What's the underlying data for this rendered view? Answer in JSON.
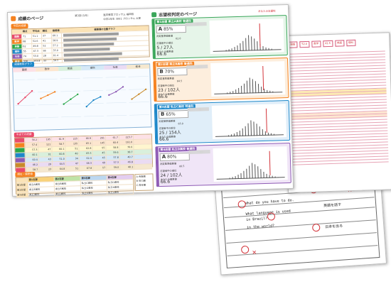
{
  "report": {
    "left_title": "成績のページ",
    "round": "第3回 (1月)",
    "school_label": "進学教室プロッサム 福岡校",
    "student_line": "中学2年生 3001 プロッサム 太郎",
    "sections": {
      "current_scores": "今回の成績",
      "trend": "成績推移グラフ",
      "past_scores": "今までの成績",
      "ranking": "順位・偏差値"
    },
    "score_headers": [
      "得点",
      "平均点",
      "順位",
      "偏差値"
    ],
    "distribution_header": "偏差値の位置グラフ",
    "subjects": [
      {
        "name": "国語",
        "color": "#e94b6b",
        "score": "71",
        "avg": "51.1",
        "rank": "37",
        "dev": "60.1"
      },
      {
        "name": "数学",
        "color": "#f58220",
        "score": "68",
        "avg": "52.6",
        "rank": "41",
        "dev": "58.9"
      },
      {
        "name": "英語",
        "color": "#2aa84a",
        "score": "62",
        "avg": "49.8",
        "rank": "52",
        "dev": "57.2"
      },
      {
        "name": "理科",
        "color": "#1e88c9",
        "score": "55",
        "avg": "47.3",
        "rank": "66",
        "dev": "55.0"
      },
      {
        "name": "社会",
        "color": "#8e5bb5",
        "score": "74",
        "avg": "53.0",
        "rank": "28",
        "dev": "61.4"
      },
      {
        "name": "総合",
        "color": "#c98a2b",
        "score": "330",
        "avg": "253.8",
        "rank": "33",
        "dev": "59.5"
      }
    ],
    "trend_columns": [
      "国語",
      "数学",
      "英語",
      "理科",
      "社会",
      "総合"
    ],
    "trend_values": [
      [
        52,
        56,
        60
      ],
      [
        55,
        57,
        59
      ],
      [
        51,
        54,
        57
      ],
      [
        49,
        53,
        55
      ],
      [
        56,
        58,
        61
      ],
      [
        53,
        56,
        59
      ]
    ],
    "past_rows": [
      [
        "56.2",
        "195",
        "61.9",
        "225",
        "66.9",
        "261",
        "61.7",
        "223.7"
      ],
      [
        "57.4",
        "121",
        "58.7",
        "135",
        "65.1",
        "145",
        "60.4",
        "161.0"
      ],
      [
        "57.3",
        "47",
        "60.1",
        "51",
        "62.8",
        "55",
        "58.8",
        "70.6"
      ],
      [
        "60.1",
        "31",
        "60.8",
        "40",
        "65.5",
        "45",
        "59.6",
        "38.7"
      ],
      [
        "60.4",
        "43",
        "51.0",
        "34",
        "62.4",
        "45",
        "57.8",
        "40.7"
      ],
      [
        "46.2",
        "29",
        "64.5",
        "47",
        "66.3",
        "49",
        "57.3",
        "46.8"
      ],
      [
        "58.7",
        "23",
        "64.8",
        "51",
        "67.8",
        "57",
        "59.0",
        "40.1"
      ]
    ],
    "ranking_headers": [
      "第1志望",
      "第2志望",
      "第3志望",
      "第4志望"
    ],
    "ranking_rows": [
      [
        "第1志望",
        "県立A高校",
        "県立B高校",
        "私立C高校",
        "私立D高校"
      ],
      [
        "第2志望",
        "県立E高校",
        "県立F高校",
        "私立G高校",
        "私立H高校"
      ],
      [
        "第3志望",
        "県立I高校",
        "県立J高校",
        "私立K高校",
        "私立L高校"
      ]
    ],
    "legend": [
      "A 合格圏",
      "B 努力圏",
      "C 再考圏"
    ],
    "right_title": "志望校判定のページ",
    "right_meta": "あなたの志望校",
    "cards": [
      {
        "no": "第1志望",
        "school": "県立A高校 普通科",
        "color": "#3aa65a",
        "grade": "A",
        "pct": "85%",
        "line1": "判定基準偏差値",
        "val1": "62.0",
        "line2": "志望者中の順位",
        "val2": "5 / 27人",
        "line3": "あなたの偏差値",
        "val3": "66.6"
      },
      {
        "no": "第2志望",
        "school": "県立B高校 普通科",
        "color": "#f58220",
        "grade": "B",
        "pct": "70%",
        "line1": "判定基準偏差値",
        "val1": "64.5",
        "line2": "志望者中の順位",
        "val2": "23 / 102人",
        "line3": "あなたの偏差値",
        "val3": "66.6"
      },
      {
        "no": "第3志望",
        "school": "私立C高校 特進科",
        "color": "#1e88c9",
        "grade": "B",
        "pct": "65%",
        "line1": "判定基準偏差値",
        "val1": "65.0",
        "line2": "志望者中の順位",
        "val2": "25 / 154人",
        "line3": "あなたの偏差値",
        "val3": "66.6"
      },
      {
        "no": "第4志望",
        "school": "私立D高校 普通科",
        "color": "#8e5bb5",
        "grade": "A",
        "pct": "80%",
        "line1": "判定基準偏差値",
        "val1": "60.5",
        "line2": "志望者中の順位",
        "val2": "24 / 102人",
        "line3": "あなたの偏差値",
        "val3": "66.6"
      }
    ]
  },
  "marksheet": {
    "header": [
      "国語",
      "52.0",
      "数学",
      "41.5",
      "英語",
      "理科"
    ]
  },
  "answers": {
    "lines": [
      "What do you have to do.",
      "What language is used",
      "in Brazil?",
      "in the world?",
      "英語を話す",
      "日本を出る"
    ],
    "numbers": [
      "1",
      "2",
      "3",
      "4",
      "5",
      "6",
      "7"
    ]
  }
}
